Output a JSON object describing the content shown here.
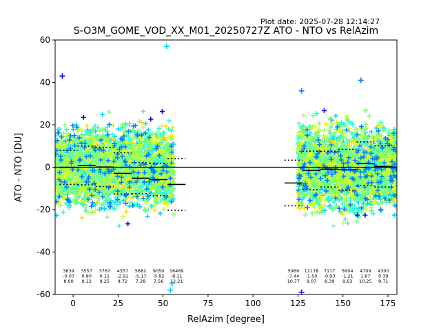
{
  "plot_date": "Plot date: 2025-07-28 12:14:27",
  "chart_data": {
    "type": "scatter",
    "title": "S-O3M_GOME_VOD_XX_M01_20250727Z ATO - NTO vs RelAzim",
    "xlabel": "RelAzim [degree]",
    "ylabel": "ATO - NTO [DU]",
    "xlim": [
      -10,
      180
    ],
    "ylim": [
      -60,
      60
    ],
    "xticks": [
      0,
      25,
      50,
      75,
      100,
      125,
      150,
      175
    ],
    "yticks": [
      -60,
      -40,
      -20,
      0,
      20,
      40,
      60
    ],
    "marker": "+",
    "colormap": [
      "#0000ff",
      "#0080ff",
      "#00d4ff",
      "#2affd0",
      "#7dff7a",
      "#d0ff2a",
      "#ffe000"
    ],
    "clusters": [
      {
        "x": [
          -10,
          56
        ],
        "y": [
          -28,
          28
        ],
        "outliers": [
          [
            -6,
            43
          ],
          [
            52,
            57
          ],
          [
            55,
            -55
          ],
          [
            54,
            -58
          ]
        ]
      },
      {
        "x": [
          125,
          180
        ],
        "y": [
          -28,
          32
        ],
        "outliers": [
          [
            127,
            36
          ],
          [
            127,
            -59
          ],
          [
            160,
            41
          ]
        ]
      }
    ],
    "bins": [
      {
        "center": -2.5,
        "count": "3639",
        "mean": "-0.07",
        "std": "8.00"
      },
      {
        "center": 7.5,
        "count": "3557",
        "mean": "0.80",
        "std": "9.12"
      },
      {
        "center": 17.5,
        "count": "3767",
        "mean": "0.11",
        "std": "9.25"
      },
      {
        "center": 27.5,
        "count": "4357",
        "mean": "-2.91",
        "std": "9.72"
      },
      {
        "center": 37.5,
        "count": "5682",
        "mean": "-5.17",
        "std": "7.28"
      },
      {
        "center": 47.5,
        "count": "9050",
        "mean": "-5.82",
        "std": "7.56"
      },
      {
        "center": 57.5,
        "count": "16489",
        "mean": "-8.11",
        "std": "12.21"
      },
      {
        "center": 122.5,
        "count": "5969",
        "mean": "-7.44",
        "std": "10.77"
      },
      {
        "center": 132.5,
        "count": "11178",
        "mean": "-1.50",
        "std": "9.07"
      },
      {
        "center": 142.5,
        "count": "7117",
        "mean": "-0.93",
        "std": "8.39"
      },
      {
        "center": 152.5,
        "count": "5604",
        "mean": "-1.21",
        "std": "9.63"
      },
      {
        "center": 162.5,
        "count": "4709",
        "mean": "1.67",
        "std": "10.25"
      },
      {
        "center": 172.5,
        "count": "4300",
        "mean": "0.39",
        "std": "9.71"
      }
    ]
  }
}
